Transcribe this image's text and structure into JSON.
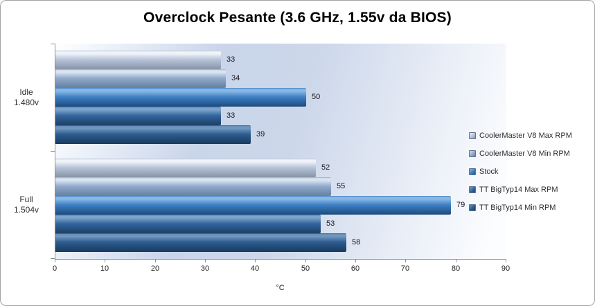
{
  "frame": {
    "border_color": "#a3a3a3",
    "background": "#ffffff"
  },
  "chart_data": {
    "type": "bar",
    "orientation": "horizontal",
    "title": "Overclock Pesante (3.6 GHz, 1.55v da BIOS)",
    "xlabel": "°C",
    "xlim": [
      0,
      90
    ],
    "xticks": [
      0,
      10,
      20,
      30,
      40,
      50,
      60,
      70,
      80,
      90
    ],
    "grid": false,
    "legend_position": "right",
    "plot_background": {
      "style": "gradient",
      "colors": [
        "#ffffff",
        "#c9d5ea",
        "#ccd7ea",
        "#fcfdfe"
      ]
    },
    "categories": [
      {
        "line1": "Idle",
        "line2": "1.480v"
      },
      {
        "line1": "Full",
        "line2": "1.504v"
      }
    ],
    "series": [
      {
        "name": "CoolerMaster V8 Max RPM",
        "values": [
          33,
          52
        ],
        "colors": {
          "highlight": "#eff3f9",
          "base": "#b7c3d8",
          "shadow": "#8a96aa"
        }
      },
      {
        "name": "CoolerMaster V8 Min RPM",
        "values": [
          34,
          55
        ],
        "colors": {
          "highlight": "#d9e3f1",
          "base": "#91aacd",
          "shadow": "#68829f"
        }
      },
      {
        "name": "Stock",
        "values": [
          50,
          79
        ],
        "colors": {
          "highlight": "#8ab8e4",
          "base": "#3e7fc5",
          "shadow": "#1f4f82"
        }
      },
      {
        "name": "TT BigTyp14 Max RPM",
        "values": [
          33,
          53
        ],
        "colors": {
          "highlight": "#7da3cb",
          "base": "#33659e",
          "shadow": "#1d4168"
        }
      },
      {
        "name": "TT BigTyp14 Min RPM",
        "values": [
          39,
          58
        ],
        "colors": {
          "highlight": "#6f96bf",
          "base": "#2d5b8f",
          "shadow": "#1a3c61"
        }
      }
    ]
  }
}
